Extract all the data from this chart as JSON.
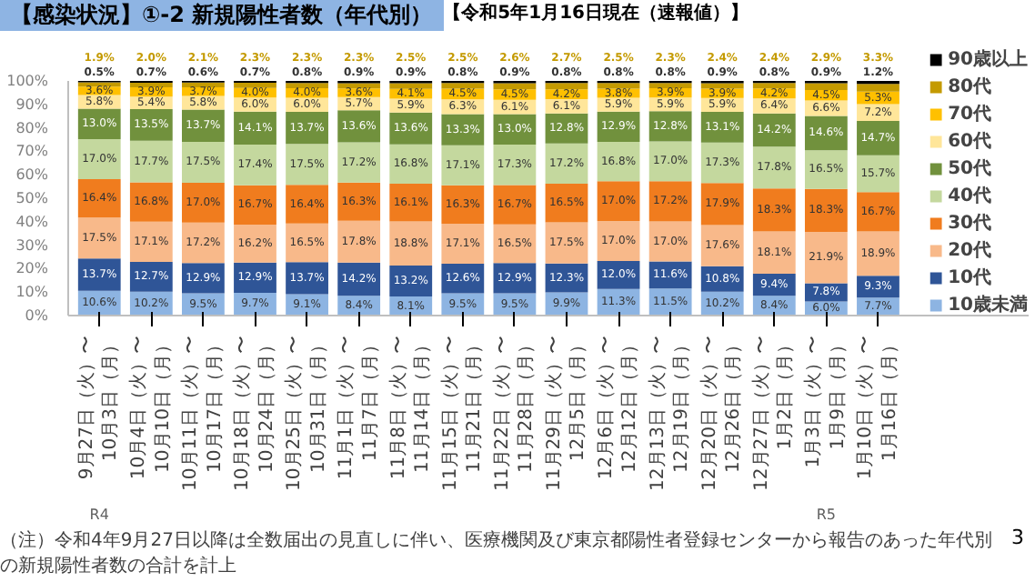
{
  "chart_data": {
    "type": "bar",
    "stacked": true,
    "title": "【感染状況】①-2 新規陽性者数（年代別）",
    "subtitle": "【令和5年1月16日現在（速報値）】",
    "categories": [
      "9月27日（火）〜10月3日（月）",
      "10月4日（火）〜10月10日（月）",
      "10月11日（火）〜10月17日（月）",
      "10月18日（火）〜10月24日（月）",
      "10月25日（火）〜10月31日（月）",
      "11月1日（火）〜11月7日（月）",
      "11月8日（火）〜11月14日（月）",
      "11月15日（火）〜11月21日（月）",
      "11月22日（火）〜11月28日（月）",
      "11月29日（火）〜12月5日（月）",
      "12月6日（火）〜12月12日（月）",
      "12月13日（火）〜12月19日（月）",
      "12月20日（火）〜12月26日（月）",
      "12月27日（火）〜1月2日（月）",
      "1月3日（火）〜1月9日（月）",
      "1月10日（火）〜1月16日（月）"
    ],
    "series": [
      {
        "name": "10歳未満",
        "color": "#8db4e2",
        "values": [
          10.6,
          10.2,
          9.5,
          9.7,
          9.1,
          8.4,
          8.1,
          9.5,
          9.5,
          9.9,
          11.3,
          11.5,
          10.2,
          8.4,
          6.0,
          7.7
        ],
        "value_labels": [
          "10.6%",
          "10.2%",
          "9.5%",
          "9.7%",
          "9.1%",
          "8.4%",
          "8.1%",
          "9.5%",
          "9.5%",
          "9.9%",
          "11.3%",
          "11.5%",
          "10.2%",
          "8.4%",
          "6.0%",
          "7.7%"
        ]
      },
      {
        "name": "10代",
        "color": "#2f5597",
        "values": [
          13.7,
          12.7,
          12.9,
          12.9,
          13.7,
          14.2,
          13.2,
          12.6,
          12.9,
          12.3,
          12.0,
          11.6,
          10.8,
          9.4,
          7.8,
          9.3
        ],
        "value_labels": [
          "13.7%",
          "12.7%",
          "12.9%",
          "12.9%",
          "13.7%",
          "14.2%",
          "13.2%",
          "12.6%",
          "12.9%",
          "12.3%",
          "12.0%",
          "11.6%",
          "10.8%",
          "9.4%",
          "7.8%",
          "9.3%"
        ]
      },
      {
        "name": "20代",
        "color": "#f8b98a",
        "values": [
          17.5,
          17.1,
          17.2,
          16.2,
          16.5,
          17.8,
          18.8,
          17.1,
          16.5,
          17.5,
          17.0,
          17.0,
          17.6,
          18.1,
          21.9,
          18.9
        ],
        "value_labels": [
          "17.5%",
          "17.1%",
          "17.2%",
          "16.2%",
          "16.5%",
          "17.8%",
          "18.8%",
          "17.1%",
          "16.5%",
          "17.5%",
          "17.0%",
          "17.0%",
          "17.6%",
          "18.1%",
          "21.9%",
          "18.9%"
        ]
      },
      {
        "name": "30代",
        "color": "#f07c1e",
        "values": [
          16.4,
          16.8,
          17.0,
          16.7,
          16.4,
          16.3,
          16.1,
          16.3,
          16.7,
          16.5,
          17.0,
          17.2,
          17.9,
          18.3,
          18.3,
          16.7
        ],
        "value_labels": [
          "16.4%",
          "16.8%",
          "17.0%",
          "16.7%",
          "16.4%",
          "16.3%",
          "16.1%",
          "16.3%",
          "16.7%",
          "16.5%",
          "17.0%",
          "17.2%",
          "17.9%",
          "18.3%",
          "18.3%",
          "16.7%"
        ]
      },
      {
        "name": "40代",
        "color": "#c4d89e",
        "values": [
          17.0,
          17.7,
          17.5,
          17.4,
          17.5,
          17.2,
          16.8,
          17.1,
          17.3,
          17.2,
          16.8,
          17.0,
          17.3,
          17.8,
          16.5,
          15.7
        ],
        "value_labels": [
          "17.0%",
          "17.7%",
          "17.5%",
          "17.4%",
          "17.5%",
          "17.2%",
          "16.8%",
          "17.1%",
          "17.3%",
          "17.2%",
          "16.8%",
          "17.0%",
          "17.3%",
          "17.8%",
          "16.5%",
          "15.7%"
        ]
      },
      {
        "name": "50代",
        "color": "#71913d",
        "values": [
          13.0,
          13.5,
          13.7,
          14.1,
          13.7,
          13.6,
          13.6,
          13.3,
          13.0,
          12.8,
          12.9,
          12.8,
          13.1,
          14.2,
          14.6,
          14.7
        ],
        "value_labels": [
          "13.0%",
          "13.5%",
          "13.7%",
          "14.1%",
          "13.7%",
          "13.6%",
          "13.6%",
          "13.3%",
          "13.0%",
          "12.8%",
          "12.9%",
          "12.8%",
          "13.1%",
          "14.2%",
          "14.6%",
          "14.7%"
        ]
      },
      {
        "name": "60代",
        "color": "#ffe69a",
        "values": [
          5.8,
          5.4,
          5.8,
          6.0,
          6.0,
          5.7,
          5.9,
          6.3,
          6.1,
          6.1,
          5.9,
          5.9,
          5.9,
          6.4,
          6.6,
          7.2
        ],
        "value_labels": [
          "5.8%",
          "5.4%",
          "5.8%",
          "6.0%",
          "6.0%",
          "5.7%",
          "5.9%",
          "6.3%",
          "6.1%",
          "6.1%",
          "5.9%",
          "5.9%",
          "5.9%",
          "6.4%",
          "6.6%",
          "7.2%"
        ]
      },
      {
        "name": "70代",
        "color": "#ffc000",
        "values": [
          3.6,
          3.9,
          3.7,
          4.0,
          4.0,
          3.6,
          4.1,
          4.5,
          4.5,
          4.2,
          3.8,
          3.9,
          3.9,
          4.2,
          4.5,
          5.3
        ],
        "value_labels": [
          "3.6%",
          "3.9%",
          "3.7%",
          "4.0%",
          "4.0%",
          "3.6%",
          "4.1%",
          "4.5%",
          "4.5%",
          "4.2%",
          "3.8%",
          "3.9%",
          "3.9%",
          "4.2%",
          "4.5%",
          "5.3%"
        ]
      },
      {
        "name": "80代",
        "color": "#c49a00",
        "values": [
          1.9,
          2.0,
          2.1,
          2.3,
          2.3,
          2.3,
          2.5,
          2.5,
          2.6,
          2.7,
          2.5,
          2.3,
          2.4,
          2.4,
          2.9,
          3.3
        ],
        "value_labels": [
          "1.9%",
          "2.0%",
          "2.1%",
          "2.3%",
          "2.3%",
          "2.3%",
          "2.5%",
          "2.5%",
          "2.6%",
          "2.7%",
          "2.5%",
          "2.3%",
          "2.4%",
          "2.4%",
          "2.9%",
          "3.3%"
        ]
      },
      {
        "name": "90歳以上",
        "color": "#000000",
        "values": [
          0.5,
          0.7,
          0.6,
          0.7,
          0.8,
          0.9,
          0.9,
          0.8,
          0.9,
          0.8,
          0.8,
          0.8,
          0.9,
          0.8,
          0.9,
          1.2
        ],
        "value_labels": [
          "0.5%",
          "0.7%",
          "0.6%",
          "0.7%",
          "0.8%",
          "0.9%",
          "0.9%",
          "0.8%",
          "0.9%",
          "0.8%",
          "0.8%",
          "0.8%",
          "0.9%",
          "0.8%",
          "0.9%",
          "1.2%"
        ]
      }
    ],
    "ylim": [
      0,
      100
    ],
    "yticks": [
      {
        "value": 0,
        "label": "0%"
      },
      {
        "value": 10,
        "label": "10%"
      },
      {
        "value": 20,
        "label": "20%"
      },
      {
        "value": 30,
        "label": "30%"
      },
      {
        "value": 40,
        "label": "40%"
      },
      {
        "value": 50,
        "label": "50%"
      },
      {
        "value": 60,
        "label": "60%"
      },
      {
        "value": 70,
        "label": "70%"
      },
      {
        "value": 80,
        "label": "80%"
      },
      {
        "value": 90,
        "label": "90%"
      },
      {
        "value": 100,
        "label": "100%"
      }
    ],
    "grid": false,
    "legend": "right",
    "annotations": [
      "（注）令和4年9月27日以降は全数届出の見直しに伴い、医療機関及び東京都陽性者登録センターから報告のあった年代別の新規陽性者数の合計を計上",
      "3",
      "R4",
      "R5"
    ]
  }
}
